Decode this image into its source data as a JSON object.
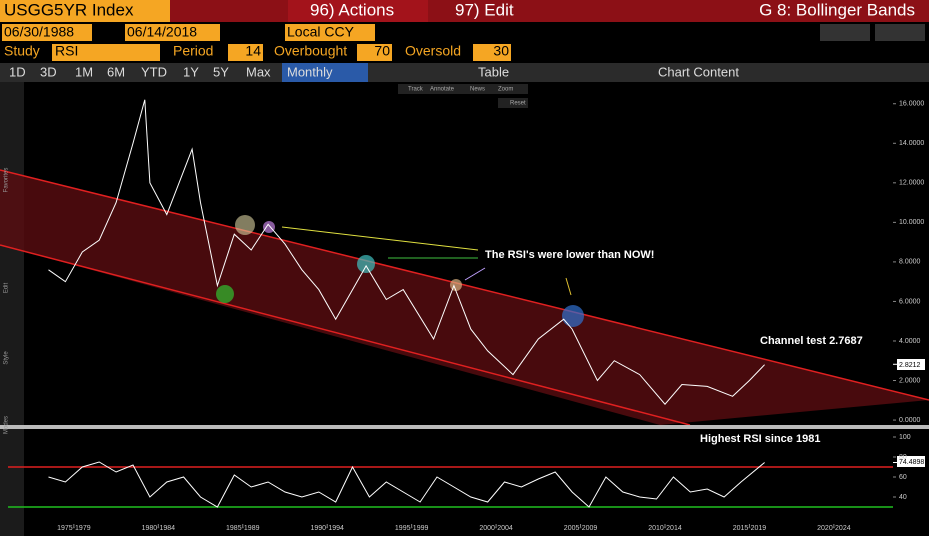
{
  "header": {
    "ticker": "USGG5YR Index",
    "actions": "96) Actions",
    "edit": "97) Edit",
    "title": "G 8: Bollinger Bands"
  },
  "controls": {
    "start_date": "06/30/1988",
    "end_date": "06/14/2018",
    "currency": "Local CCY",
    "study_label": "Study",
    "study": "RSI",
    "period_label": "Period",
    "period": 14,
    "overbought_label": "Overbought",
    "overbought": 70,
    "oversold_label": "Oversold",
    "oversold": 30
  },
  "tabs": [
    "1D",
    "3D",
    "1M",
    "6M",
    "YTD",
    "1Y",
    "5Y",
    "Max",
    "Monthly",
    "Table",
    "Chart Content"
  ],
  "chart_tools": [
    "Track",
    "Annotate",
    "News",
    "Zoom",
    "Reset"
  ],
  "side_labels": [
    "Favorites",
    "Edit",
    "Style",
    "Modes"
  ],
  "chart_data": [
    {
      "type": "line",
      "color": "#ffffff",
      "annotations": [
        "The RSI's were lower than NOW!",
        "Channel test 2.7687"
      ],
      "last_value": {
        "value": 2.8212,
        "label": "2.8212"
      },
      "xlim": [
        1973.6,
        2026
      ],
      "ylim": [
        -0.25,
        17.1
      ],
      "yticks": [
        {
          "value": 0,
          "label": "0.0000"
        },
        {
          "value": 2,
          "label": "2.0000"
        },
        {
          "value": 4,
          "label": "4.0000"
        },
        {
          "value": 6,
          "label": "6.0000"
        },
        {
          "value": 8,
          "label": "8.0000"
        },
        {
          "value": 10,
          "label": "10.0000"
        },
        {
          "value": 12,
          "label": "12.0000"
        },
        {
          "value": 14,
          "label": "14.0000"
        },
        {
          "value": 16,
          "label": "16.0000"
        }
      ],
      "x": [
        1976,
        1977,
        1978,
        1979,
        1980,
        1981,
        1981.7,
        1982,
        1983,
        1984.5,
        1985,
        1986,
        1987,
        1988,
        1989,
        1990,
        1991,
        1992,
        1993,
        1994.8,
        1996,
        1997,
        1998.8,
        2000,
        2001,
        2002,
        2003.5,
        2005,
        2006.5,
        2007,
        2008.5,
        2009.5,
        2011,
        2012.5,
        2013.5,
        2015,
        2016.5,
        2017.5,
        2018.4
      ],
      "values": [
        7.6,
        7.0,
        8.5,
        9.1,
        11,
        14,
        16.2,
        12,
        10.4,
        13.7,
        11,
        6.8,
        9.4,
        8.6,
        9.9,
        8.9,
        7.6,
        6.6,
        5.1,
        7.8,
        6.1,
        6.6,
        4.1,
        6.8,
        4.6,
        3.5,
        2.3,
        4.1,
        5.1,
        4.6,
        2.0,
        3.0,
        2.3,
        0.8,
        1.8,
        1.7,
        1.2,
        2.0,
        2.8
      ]
    },
    {
      "type": "line",
      "color": "#ffffff",
      "annotations": [
        "Highest RSI since 1981"
      ],
      "last_value": {
        "value": 74.4898,
        "label": "74.4898"
      },
      "overbought": 70,
      "oversold": 30,
      "xlim": [
        1973.6,
        2026
      ],
      "ylim": [
        27,
        107
      ],
      "yticks": [
        40,
        60,
        80,
        100
      ],
      "xticks": [
        {
          "value": 1977.5,
          "label": "1975-1979"
        },
        {
          "value": 1982.5,
          "label": "1980-1984"
        },
        {
          "value": 1987.5,
          "label": "1985-1989"
        },
        {
          "value": 1992.5,
          "label": "1990-1994"
        },
        {
          "value": 1997.5,
          "label": "1995-1999"
        },
        {
          "value": 2002.5,
          "label": "2000-2004"
        },
        {
          "value": 2007.5,
          "label": "2005-2009"
        },
        {
          "value": 2012.5,
          "label": "2010-2014"
        },
        {
          "value": 2017.5,
          "label": "2015-2019"
        },
        {
          "value": 2022.5,
          "label": "2020-2024"
        }
      ],
      "x": [
        1976,
        1977,
        1978,
        1979,
        1980,
        1981,
        1982,
        1983,
        1984,
        1985,
        1986,
        1987,
        1988,
        1989,
        1990,
        1991,
        1992,
        1993,
        1994,
        1995,
        1996,
        1997,
        1998,
        1999,
        2000,
        2001,
        2002,
        2003,
        2004,
        2005,
        2006,
        2007,
        2008,
        2009,
        2010,
        2011,
        2012,
        2013,
        2014,
        2015,
        2016,
        2017,
        2018.4
      ],
      "values": [
        60,
        55,
        70,
        75,
        65,
        72,
        40,
        55,
        60,
        40,
        30,
        62,
        50,
        55,
        45,
        40,
        45,
        35,
        70,
        40,
        55,
        45,
        35,
        60,
        50,
        40,
        35,
        55,
        50,
        58,
        65,
        45,
        30,
        60,
        45,
        40,
        38,
        60,
        45,
        48,
        40,
        55,
        74.5
      ]
    }
  ]
}
